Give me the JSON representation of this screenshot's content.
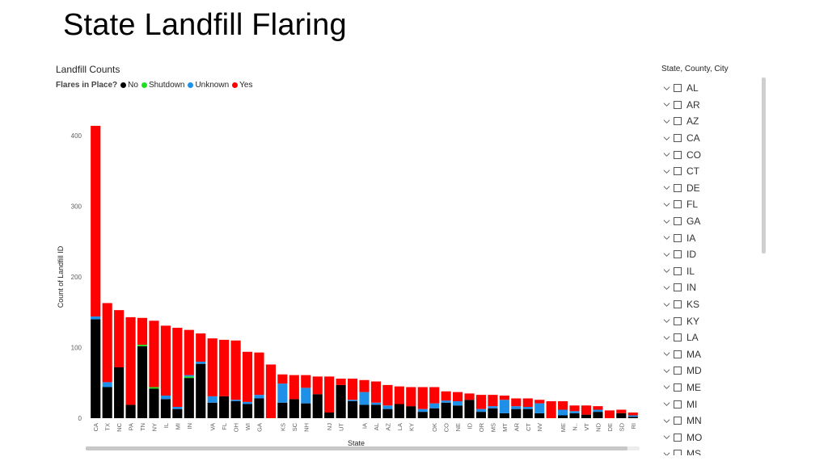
{
  "page": {
    "title": "State Landfill Flaring"
  },
  "legend": {
    "title": "Flares in Place?",
    "items": [
      {
        "label": "No",
        "color": "#000000"
      },
      {
        "label": "Shutdown",
        "color": "#1FE01F"
      },
      {
        "label": "Unknown",
        "color": "#1E90E8"
      },
      {
        "label": "Yes",
        "color": "#FF0000"
      }
    ]
  },
  "chart_data": {
    "type": "bar",
    "stacked": true,
    "title": "Landfill Counts",
    "xlabel": "State",
    "ylabel": "Count of Landfill ID",
    "ylim": [
      0,
      415
    ],
    "yticks": [
      0,
      100,
      200,
      300,
      400
    ],
    "grid": false,
    "legend_position": "top-left",
    "categories": [
      "CA",
      "TX",
      "NC",
      "PA",
      "TN",
      "NY",
      "IL",
      "MI",
      "IN",
      "",
      "VA",
      "FL",
      "OH",
      "WI",
      "GA",
      "",
      "KS",
      "SC",
      "NH",
      "",
      "NJ",
      "UT",
      "",
      "IA",
      "AL",
      "AZ",
      "LA",
      "KY",
      "",
      "OK",
      "CO",
      "NE",
      "ID",
      "OR",
      "MS",
      "MT",
      "AR",
      "CT",
      "NV",
      "",
      "ME",
      "N..",
      "VT",
      "ND",
      "DE",
      "SD",
      "RI"
    ],
    "series": [
      {
        "name": "No",
        "color": "#000000",
        "values": [
          140,
          44,
          72,
          19,
          102,
          42,
          27,
          13,
          57,
          77,
          22,
          31,
          24,
          20,
          28,
          0,
          22,
          27,
          21,
          34,
          8,
          47,
          24,
          19,
          19,
          13,
          20,
          17,
          9,
          14,
          22,
          18,
          26,
          9,
          14,
          7,
          13,
          13,
          7,
          0,
          4,
          7,
          5,
          9,
          0,
          7,
          2
        ]
      },
      {
        "name": "Shutdown",
        "color": "#1FE01F",
        "values": [
          0,
          0,
          0,
          0,
          2,
          2,
          0,
          0,
          2,
          0,
          0,
          0,
          0,
          0,
          0,
          0,
          0,
          0,
          0,
          0,
          0,
          0,
          0,
          0,
          0,
          0,
          0,
          0,
          0,
          0,
          0,
          0,
          0,
          0,
          0,
          0,
          0,
          0,
          0,
          0,
          0,
          0,
          0,
          0,
          0,
          0,
          0
        ]
      },
      {
        "name": "Unknown",
        "color": "#1E90E8",
        "values": [
          4,
          7,
          0,
          0,
          0,
          0,
          5,
          3,
          2,
          3,
          9,
          0,
          2,
          3,
          5,
          0,
          27,
          0,
          22,
          0,
          0,
          0,
          2,
          18,
          3,
          5,
          0,
          0,
          4,
          7,
          3,
          6,
          0,
          4,
          3,
          19,
          4,
          3,
          14,
          0,
          8,
          3,
          0,
          3,
          0,
          0,
          2
        ]
      },
      {
        "name": "Yes",
        "color": "#FF0000",
        "values": [
          270,
          112,
          81,
          124,
          38,
          94,
          99,
          112,
          64,
          40,
          82,
          80,
          84,
          71,
          60,
          76,
          13,
          34,
          18,
          25,
          51,
          9,
          30,
          17,
          30,
          29,
          25,
          27,
          31,
          23,
          13,
          13,
          9,
          20,
          16,
          6,
          11,
          12,
          5,
          24,
          12,
          8,
          13,
          5,
          11,
          5,
          4
        ]
      }
    ]
  },
  "slicer": {
    "title": "State, County, City",
    "items": [
      "AL",
      "AR",
      "AZ",
      "CA",
      "CO",
      "CT",
      "DE",
      "FL",
      "GA",
      "IA",
      "ID",
      "IL",
      "IN",
      "KS",
      "KY",
      "LA",
      "MA",
      "MD",
      "ME",
      "MI",
      "MN",
      "MO",
      "MS"
    ]
  }
}
